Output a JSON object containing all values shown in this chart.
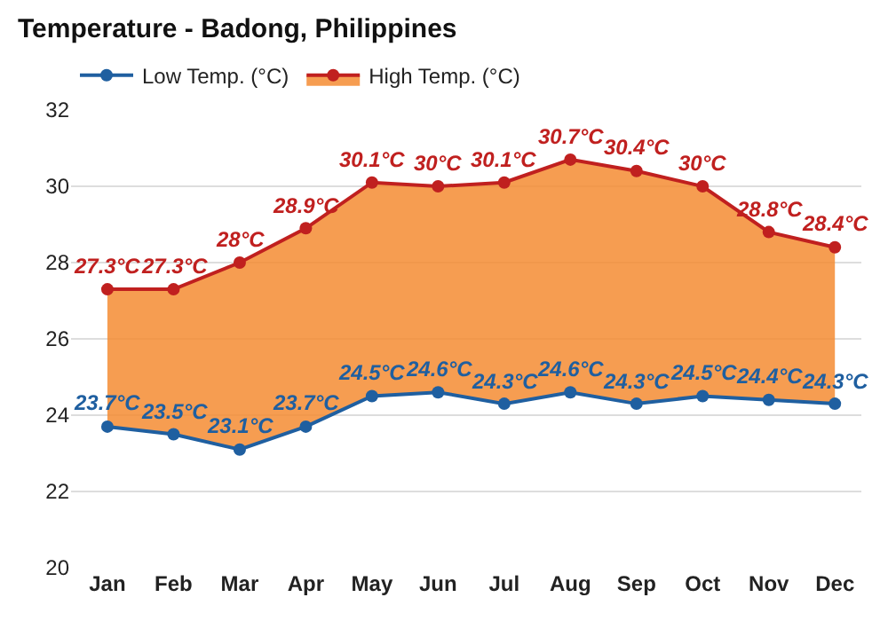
{
  "chart_data": {
    "type": "line",
    "title": "Temperature - Badong, Philippines",
    "categories": [
      "Jan",
      "Feb",
      "Mar",
      "Apr",
      "May",
      "Jun",
      "Jul",
      "Aug",
      "Sep",
      "Oct",
      "Nov",
      "Dec"
    ],
    "series": [
      {
        "name": "Low Temp. (°C)",
        "color": "#1f5fa0",
        "values": [
          23.7,
          23.5,
          23.1,
          23.7,
          24.5,
          24.6,
          24.3,
          24.6,
          24.3,
          24.5,
          24.4,
          24.3
        ],
        "value_labels": [
          "23.7°C",
          "23.5°C",
          "23.1°C",
          "23.7°C",
          "24.5°C",
          "24.6°C",
          "24.3°C",
          "24.6°C",
          "24.3°C",
          "24.5°C",
          "24.4°C",
          "24.3°C"
        ]
      },
      {
        "name": "High Temp. (°C)",
        "type": "area",
        "color": "#c0201f",
        "values": [
          27.3,
          27.3,
          28,
          28.9,
          30.1,
          30,
          30.1,
          30.7,
          30.4,
          30,
          28.8,
          28.4
        ],
        "value_labels": [
          "27.3°C",
          "27.3°C",
          "28°C",
          "28.9°C",
          "30.1°C",
          "30°C",
          "30.1°C",
          "30.7°C",
          "30.4°C",
          "30°C",
          "28.8°C",
          "28.4°C"
        ]
      }
    ],
    "ylim": [
      20,
      32
    ],
    "yticks": [
      20,
      22,
      24,
      26,
      28,
      30,
      32
    ],
    "grid": "y",
    "legend": "top left",
    "marker": "circle",
    "line_style": "solid"
  }
}
